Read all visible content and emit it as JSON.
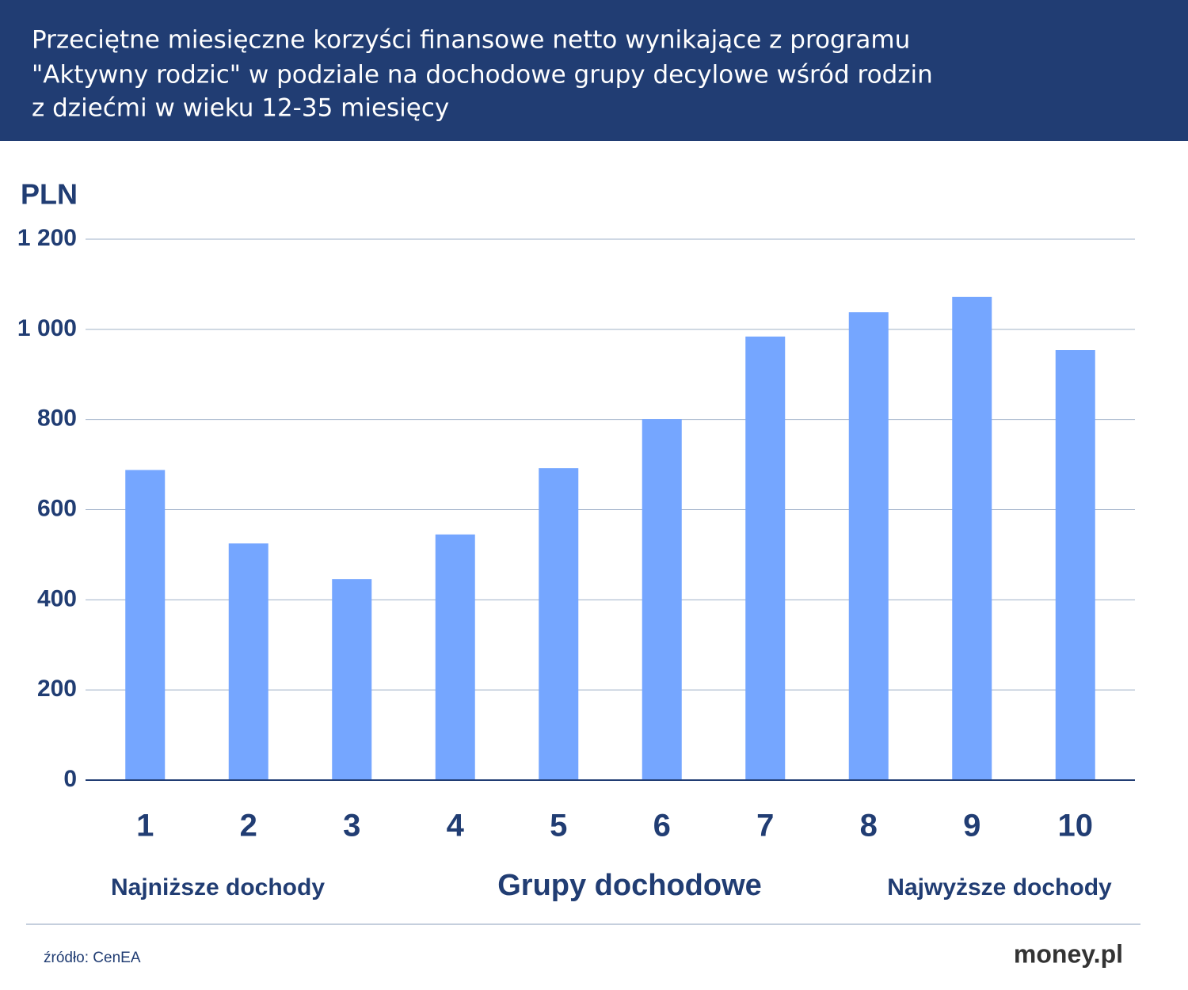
{
  "chart_data": {
    "type": "bar",
    "title_lines": [
      "Przeciętne miesięczne korzyści finansowe netto wynikające z programu",
      "\"Aktywny rodzic\" w podziale na dochodowe grupy decylowe wśród rodzin",
      "z dziećmi w wieku 12-35 miesięcy"
    ],
    "y_label": "PLN",
    "x_label": "Grupy dochodowe",
    "x_note_left": "Najniższe dochody",
    "x_note_right": "Najwyższe dochody",
    "categories": [
      "1",
      "2",
      "3",
      "4",
      "5",
      "6",
      "7",
      "8",
      "9",
      "10"
    ],
    "values": [
      688,
      525,
      446,
      545,
      692,
      801,
      984,
      1038,
      1072,
      954
    ],
    "color": "#75a6ff",
    "ylim": [
      0,
      1200
    ],
    "yticks": [
      0,
      200,
      400,
      600,
      800,
      {
        "value": 1000,
        "label": "1 000"
      },
      {
        "value": 1200,
        "label": "1 200"
      }
    ],
    "grid": true,
    "source": "źródło: CenEA",
    "logo": "money.pl"
  }
}
